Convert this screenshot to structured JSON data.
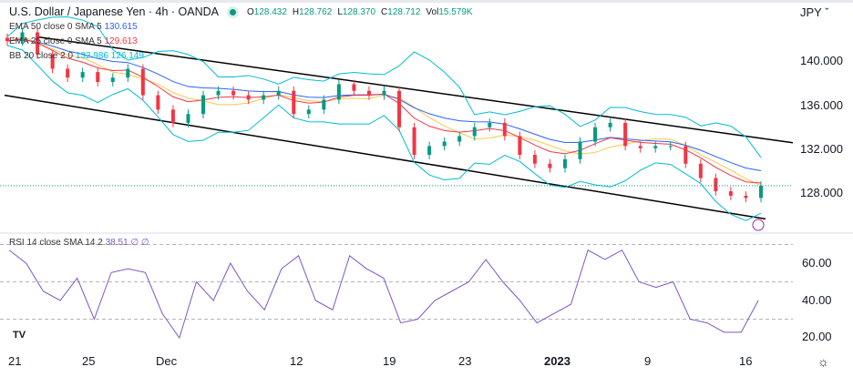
{
  "header": {
    "symbol": "U.S. Dollar / Japanese Yen · 4h · OANDA",
    "ohlc": {
      "o_label": "O",
      "o": "128.432",
      "h_label": "H",
      "h": "128.762",
      "l_label": "L",
      "l": "128.370",
      "c_label": "C",
      "c": "128.712",
      "vol_label": "Vol",
      "vol": "15.579K"
    }
  },
  "indicators": [
    {
      "label": "EMA 50 close 0 SMA 5",
      "values": "130.615",
      "color": "#2962ff"
    },
    {
      "label": "EMA 25 close 0 SMA 5",
      "values": "129.613",
      "color": "#f23645"
    },
    {
      "label": "BB 20 close 2 0",
      "values": "132.986  126.149",
      "color": "#00bcd4"
    }
  ],
  "rsi_legend": {
    "label": "RSI 14 close SMA 14 2",
    "values": "38.51  ∅  ∅"
  },
  "currency": "JPY",
  "price_axis": [
    "140.000",
    "136.000",
    "132.000",
    "128.000"
  ],
  "rsi_axis": [
    "60.00",
    "40.00",
    "20.00"
  ],
  "time_axis": [
    "21",
    "25",
    "Dec",
    "12",
    "19",
    "23",
    "2023",
    "9",
    "16"
  ],
  "colors": {
    "up": "#089981",
    "down": "#f23645",
    "bb": "#00bcd4",
    "ema50": "#2962ff",
    "ema25": "#f23645",
    "rsi": "#7e57c2"
  },
  "chart_data": {
    "type": "candlestick",
    "price_range": [
      125,
      142.5
    ],
    "closes": [
      141.8,
      142.6,
      140.6,
      139.3,
      138.5,
      139,
      138.1,
      138.5,
      139.3,
      136.9,
      135.6,
      134.4,
      135.2,
      136.9,
      137.3,
      136.9,
      136.5,
      136.9,
      137.3,
      135.2,
      135.6,
      136.5,
      137.9,
      137.3,
      136.9,
      137.3,
      134,
      131.5,
      132.3,
      132.7,
      133.2,
      134,
      134.4,
      133.2,
      131.5,
      130.7,
      130.3,
      131.1,
      132.7,
      134,
      134.4,
      132.3,
      132.1,
      132.3,
      132.3,
      130.7,
      129.4,
      128.2,
      127.8,
      127.6,
      128.7
    ],
    "last_price": 128.712,
    "channel": {
      "upper": [
        142.2,
        132.6
      ],
      "lower": [
        136.9,
        125.7
      ]
    },
    "rsi": {
      "range": [
        10,
        75
      ],
      "levels": [
        70,
        50,
        30
      ],
      "values": [
        67,
        60,
        45,
        40,
        52,
        30,
        55,
        57,
        55,
        33,
        20,
        50,
        40,
        60,
        45,
        35,
        57,
        64,
        40,
        35,
        64,
        57,
        52,
        28,
        30,
        40,
        45,
        50,
        62,
        50,
        40,
        28,
        33,
        38,
        67,
        62,
        67,
        50,
        47,
        50,
        30,
        28,
        23,
        23,
        40
      ]
    }
  }
}
